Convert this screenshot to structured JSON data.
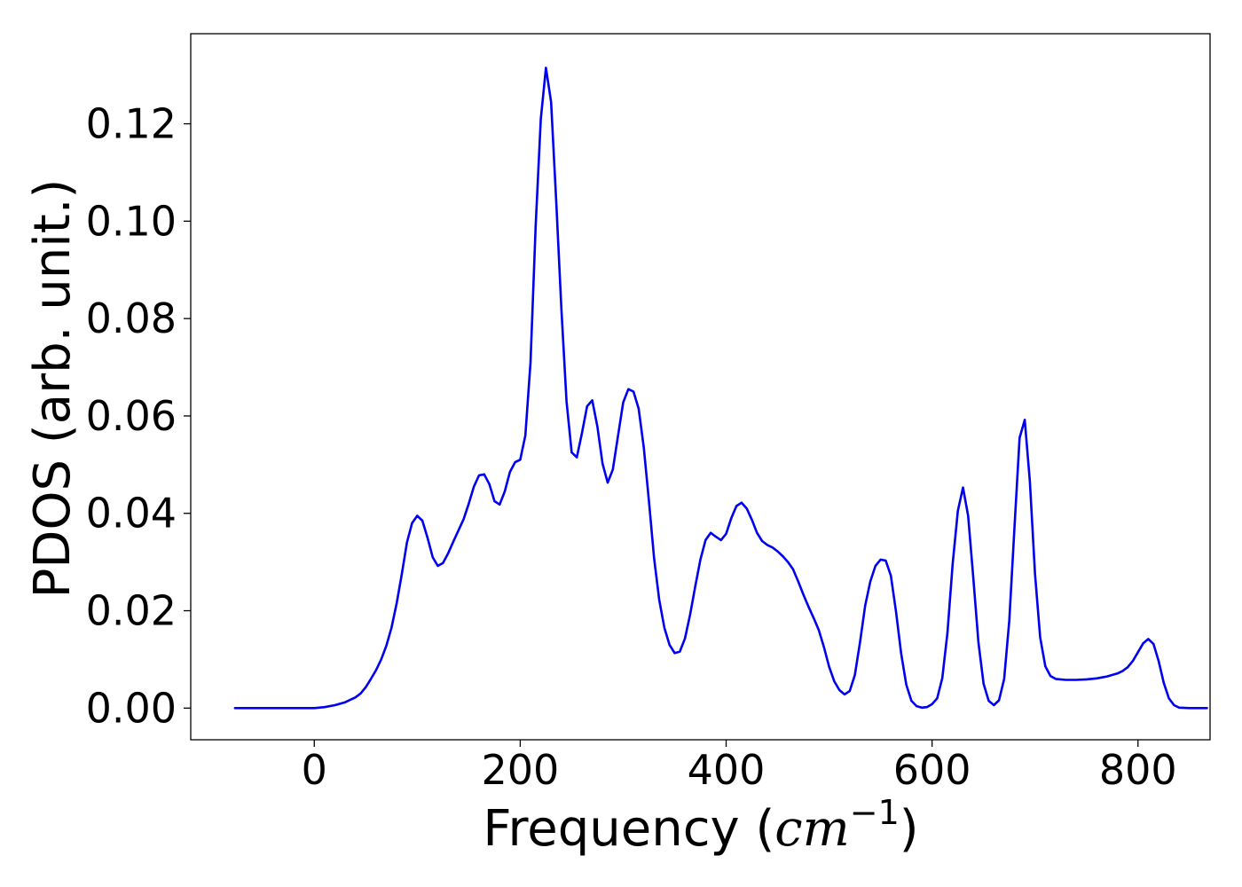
{
  "chart_data": {
    "type": "line",
    "title": "",
    "xlabel": "Frequency (cm⁻¹)",
    "xlabel_parts": {
      "prefix": "Frequency (",
      "unit": "cm",
      "exponent": "−1",
      "suffix": ")"
    },
    "ylabel": "PDOS (arb. unit.)",
    "xlim": [
      -120,
      870
    ],
    "ylim": [
      -0.0065,
      0.1385
    ],
    "xticks": [
      {
        "value": 0,
        "label": "0"
      },
      {
        "value": 200,
        "label": "200"
      },
      {
        "value": 400,
        "label": "400"
      },
      {
        "value": 600,
        "label": "600"
      },
      {
        "value": 800,
        "label": "800"
      }
    ],
    "yticks": [
      {
        "value": 0.0,
        "label": "0.00"
      },
      {
        "value": 0.02,
        "label": "0.02"
      },
      {
        "value": 0.04,
        "label": "0.04"
      },
      {
        "value": 0.06,
        "label": "0.06"
      },
      {
        "value": 0.08,
        "label": "0.08"
      },
      {
        "value": 0.1,
        "label": "0.10"
      },
      {
        "value": 0.12,
        "label": "0.12"
      }
    ],
    "grid": false,
    "legend": "none",
    "series": [
      {
        "color": "#0000ee",
        "points": [
          [
            -77,
            0.0
          ],
          [
            -40,
            0.0
          ],
          [
            -10,
            0.0
          ],
          [
            0,
            0.0
          ],
          [
            10,
            0.0002
          ],
          [
            20,
            0.0006
          ],
          [
            30,
            0.0012
          ],
          [
            40,
            0.0022
          ],
          [
            45,
            0.003
          ],
          [
            50,
            0.0043
          ],
          [
            55,
            0.006
          ],
          [
            60,
            0.0078
          ],
          [
            65,
            0.01
          ],
          [
            70,
            0.0128
          ],
          [
            75,
            0.0165
          ],
          [
            80,
            0.0215
          ],
          [
            85,
            0.0275
          ],
          [
            90,
            0.034
          ],
          [
            95,
            0.038
          ],
          [
            100,
            0.0395
          ],
          [
            105,
            0.0385
          ],
          [
            110,
            0.035
          ],
          [
            115,
            0.031
          ],
          [
            120,
            0.0292
          ],
          [
            125,
            0.0298
          ],
          [
            130,
            0.0318
          ],
          [
            135,
            0.0342
          ],
          [
            140,
            0.0365
          ],
          [
            145,
            0.0388
          ],
          [
            150,
            0.042
          ],
          [
            155,
            0.0455
          ],
          [
            160,
            0.0478
          ],
          [
            165,
            0.048
          ],
          [
            170,
            0.046
          ],
          [
            175,
            0.0425
          ],
          [
            180,
            0.0418
          ],
          [
            185,
            0.0445
          ],
          [
            190,
            0.0485
          ],
          [
            195,
            0.0505
          ],
          [
            200,
            0.051
          ],
          [
            205,
            0.056
          ],
          [
            210,
            0.071
          ],
          [
            215,
            0.099
          ],
          [
            220,
            0.121
          ],
          [
            225,
            0.1315
          ],
          [
            230,
            0.1245
          ],
          [
            235,
            0.104
          ],
          [
            240,
            0.082
          ],
          [
            245,
            0.063
          ],
          [
            250,
            0.0525
          ],
          [
            255,
            0.0515
          ],
          [
            260,
            0.0565
          ],
          [
            265,
            0.062
          ],
          [
            270,
            0.0632
          ],
          [
            275,
            0.0578
          ],
          [
            280,
            0.0502
          ],
          [
            285,
            0.0463
          ],
          [
            290,
            0.049
          ],
          [
            295,
            0.056
          ],
          [
            300,
            0.0628
          ],
          [
            305,
            0.0655
          ],
          [
            310,
            0.065
          ],
          [
            315,
            0.0615
          ],
          [
            320,
            0.0535
          ],
          [
            325,
            0.0425
          ],
          [
            330,
            0.0308
          ],
          [
            335,
            0.0222
          ],
          [
            340,
            0.0165
          ],
          [
            345,
            0.013
          ],
          [
            350,
            0.0113
          ],
          [
            355,
            0.0116
          ],
          [
            360,
            0.0143
          ],
          [
            365,
            0.0192
          ],
          [
            370,
            0.025
          ],
          [
            375,
            0.0305
          ],
          [
            380,
            0.0345
          ],
          [
            385,
            0.036
          ],
          [
            390,
            0.0352
          ],
          [
            395,
            0.0345
          ],
          [
            400,
            0.0358
          ],
          [
            405,
            0.039
          ],
          [
            410,
            0.0415
          ],
          [
            415,
            0.0422
          ],
          [
            420,
            0.041
          ],
          [
            425,
            0.0387
          ],
          [
            430,
            0.036
          ],
          [
            435,
            0.0343
          ],
          [
            440,
            0.0335
          ],
          [
            445,
            0.033
          ],
          [
            450,
            0.0322
          ],
          [
            455,
            0.0312
          ],
          [
            460,
            0.03
          ],
          [
            465,
            0.0285
          ],
          [
            470,
            0.026
          ],
          [
            475,
            0.0233
          ],
          [
            480,
            0.0208
          ],
          [
            485,
            0.0185
          ],
          [
            490,
            0.016
          ],
          [
            495,
            0.0125
          ],
          [
            500,
            0.0085
          ],
          [
            505,
            0.0055
          ],
          [
            510,
            0.0037
          ],
          [
            515,
            0.0028
          ],
          [
            520,
            0.0035
          ],
          [
            525,
            0.0068
          ],
          [
            530,
            0.0135
          ],
          [
            535,
            0.021
          ],
          [
            540,
            0.026
          ],
          [
            545,
            0.0292
          ],
          [
            550,
            0.0305
          ],
          [
            555,
            0.0303
          ],
          [
            560,
            0.0272
          ],
          [
            565,
            0.0198
          ],
          [
            570,
            0.0112
          ],
          [
            575,
            0.0048
          ],
          [
            580,
            0.0015
          ],
          [
            585,
            0.0004
          ],
          [
            590,
            0.0001
          ],
          [
            595,
            0.0002
          ],
          [
            600,
            0.0008
          ],
          [
            605,
            0.002
          ],
          [
            610,
            0.0062
          ],
          [
            615,
            0.0155
          ],
          [
            620,
            0.0295
          ],
          [
            625,
            0.0405
          ],
          [
            630,
            0.0453
          ],
          [
            635,
            0.0395
          ],
          [
            640,
            0.0268
          ],
          [
            645,
            0.0135
          ],
          [
            650,
            0.005
          ],
          [
            655,
            0.0015
          ],
          [
            660,
            0.0006
          ],
          [
            665,
            0.0016
          ],
          [
            670,
            0.006
          ],
          [
            675,
            0.018
          ],
          [
            680,
            0.037
          ],
          [
            685,
            0.0555
          ],
          [
            690,
            0.0592
          ],
          [
            695,
            0.0465
          ],
          [
            700,
            0.0275
          ],
          [
            705,
            0.0145
          ],
          [
            710,
            0.0086
          ],
          [
            715,
            0.0066
          ],
          [
            720,
            0.006
          ],
          [
            730,
            0.0058
          ],
          [
            740,
            0.0058
          ],
          [
            750,
            0.0059
          ],
          [
            760,
            0.0061
          ],
          [
            770,
            0.0065
          ],
          [
            780,
            0.0071
          ],
          [
            785,
            0.0076
          ],
          [
            790,
            0.0084
          ],
          [
            795,
            0.0097
          ],
          [
            800,
            0.0115
          ],
          [
            805,
            0.0133
          ],
          [
            810,
            0.0142
          ],
          [
            815,
            0.0132
          ],
          [
            820,
            0.0097
          ],
          [
            825,
            0.0052
          ],
          [
            830,
            0.002
          ],
          [
            835,
            0.0006
          ],
          [
            840,
            0.0001
          ],
          [
            850,
            0.0
          ],
          [
            860,
            0.0
          ],
          [
            867,
            0.0
          ]
        ]
      }
    ]
  }
}
